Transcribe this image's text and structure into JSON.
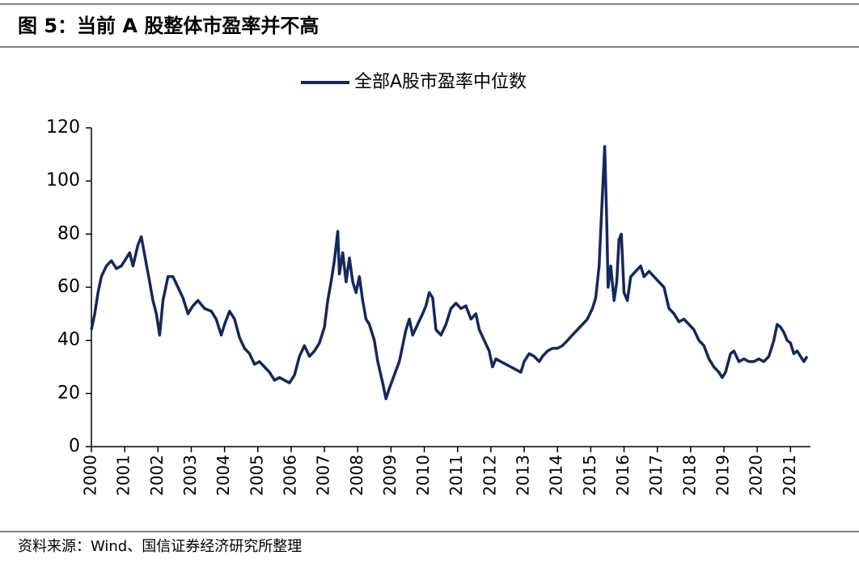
{
  "title": "图 5：当前 A 股整体市盈率并不高",
  "source": "资料来源：Wind、国信证券经济研究所整理",
  "chart_data": {
    "type": "line",
    "xlim": [
      2000,
      2021.6
    ],
    "xticks": [
      2000,
      2001,
      2002,
      2003,
      2004,
      2005,
      2006,
      2007,
      2008,
      2009,
      2010,
      2011,
      2012,
      2013,
      2014,
      2015,
      2016,
      2017,
      2018,
      2019,
      2020,
      2021
    ],
    "ylim": [
      0,
      120
    ],
    "yticks": [
      0,
      20,
      40,
      60,
      80,
      100,
      120
    ],
    "legend": "top",
    "x": [
      2000.0,
      2000.1,
      2000.2,
      2000.3,
      2000.45,
      2000.6,
      2000.75,
      2000.9,
      2001.0,
      2001.15,
      2001.25,
      2001.4,
      2001.5,
      2001.6,
      2001.75,
      2001.85,
      2001.95,
      2002.05,
      2002.15,
      2002.3,
      2002.45,
      2002.6,
      2002.75,
      2002.9,
      2003.05,
      2003.2,
      2003.4,
      2003.6,
      2003.75,
      2003.9,
      2004.0,
      2004.15,
      2004.3,
      2004.45,
      2004.6,
      2004.75,
      2004.9,
      2005.05,
      2005.2,
      2005.35,
      2005.5,
      2005.65,
      2005.8,
      2005.95,
      2006.1,
      2006.25,
      2006.4,
      2006.55,
      2006.7,
      2006.85,
      2007.0,
      2007.1,
      2007.2,
      2007.3,
      2007.4,
      2007.45,
      2007.55,
      2007.65,
      2007.75,
      2007.85,
      2007.95,
      2008.05,
      2008.15,
      2008.25,
      2008.35,
      2008.5,
      2008.6,
      2008.75,
      2008.85,
      2008.95,
      2009.1,
      2009.25,
      2009.35,
      2009.45,
      2009.55,
      2009.65,
      2009.8,
      2009.95,
      2010.05,
      2010.15,
      2010.25,
      2010.35,
      2010.5,
      2010.65,
      2010.8,
      2010.95,
      2011.1,
      2011.25,
      2011.4,
      2011.55,
      2011.65,
      2011.8,
      2011.95,
      2012.05,
      2012.15,
      2012.3,
      2012.45,
      2012.6,
      2012.75,
      2012.9,
      2013.0,
      2013.15,
      2013.3,
      2013.45,
      2013.55,
      2013.7,
      2013.85,
      2014.0,
      2014.15,
      2014.3,
      2014.45,
      2014.6,
      2014.75,
      2014.9,
      2015.05,
      2015.15,
      2015.25,
      2015.35,
      2015.42,
      2015.48,
      2015.52,
      2015.6,
      2015.7,
      2015.78,
      2015.85,
      2015.92,
      2016.0,
      2016.1,
      2016.2,
      2016.35,
      2016.5,
      2016.6,
      2016.75,
      2016.9,
      2017.05,
      2017.2,
      2017.35,
      2017.5,
      2017.65,
      2017.8,
      2017.95,
      2018.1,
      2018.25,
      2018.4,
      2018.55,
      2018.7,
      2018.85,
      2018.95,
      2019.05,
      2019.2,
      2019.3,
      2019.45,
      2019.6,
      2019.75,
      2019.9,
      2020.05,
      2020.2,
      2020.35,
      2020.5,
      2020.6,
      2020.7,
      2020.8,
      2020.9,
      2021.0,
      2021.1,
      2021.2,
      2021.3,
      2021.4,
      2021.5
    ],
    "series": [
      {
        "name": "全部A股市盈率中位数",
        "color": "#14275e",
        "values": [
          44,
          50,
          58,
          64,
          68,
          70,
          67,
          68,
          70,
          73,
          68,
          76,
          79,
          72,
          62,
          55,
          50,
          42,
          55,
          64,
          64,
          60,
          56,
          50,
          53,
          55,
          52,
          51,
          48,
          42,
          46,
          51,
          48,
          41,
          37,
          35,
          31,
          32,
          30,
          28,
          25,
          26,
          25,
          24,
          27,
          34,
          38,
          34,
          36,
          39,
          45,
          55,
          62,
          70,
          81,
          65,
          73,
          62,
          71,
          62,
          58,
          64,
          55,
          48,
          46,
          40,
          32,
          24,
          18,
          22,
          27,
          32,
          38,
          44,
          48,
          42,
          46,
          50,
          53,
          58,
          56,
          44,
          42,
          46,
          52,
          54,
          52,
          53,
          48,
          50,
          44,
          40,
          36,
          30,
          33,
          32,
          31,
          30,
          29,
          28,
          32,
          35,
          34,
          32,
          34,
          36,
          37,
          37,
          38,
          40,
          42,
          44,
          46,
          48,
          52,
          56,
          68,
          95,
          113,
          85,
          60,
          68,
          55,
          62,
          78,
          80,
          58,
          55,
          64,
          66,
          68,
          64,
          66,
          64,
          62,
          60,
          52,
          50,
          47,
          48,
          46,
          44,
          40,
          38,
          33,
          30,
          28,
          26,
          28,
          35,
          36,
          32,
          33,
          32,
          32,
          33,
          32,
          34,
          40,
          46,
          45,
          43,
          40,
          39,
          35,
          36,
          34,
          32,
          34
        ]
      }
    ]
  }
}
